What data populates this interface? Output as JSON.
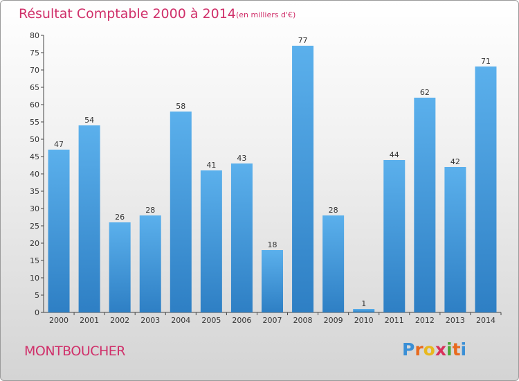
{
  "chart_data": {
    "type": "bar",
    "title": "Résultat Comptable 2000 à 2014",
    "subtitle": "(en milliers d'€)",
    "categories": [
      "2000",
      "2001",
      "2002",
      "2003",
      "2004",
      "2005",
      "2006",
      "2007",
      "2008",
      "2009",
      "2010",
      "2011",
      "2012",
      "2013",
      "2014"
    ],
    "values": [
      47,
      54,
      26,
      28,
      58,
      41,
      43,
      18,
      77,
      28,
      1,
      44,
      62,
      42,
      71
    ],
    "ylim": [
      0,
      80
    ],
    "ytick_step": 5,
    "xlabel": "",
    "ylabel": "",
    "grid": false,
    "bar_color": "#4a9de0"
  },
  "footer": {
    "place": "MONTBOUCHER",
    "logo_letters": [
      "P",
      "r",
      "o",
      "x",
      "i",
      "t",
      "i"
    ],
    "logo_colors": [
      "#3a8fd6",
      "#e86a1e",
      "#e8b81e",
      "#d8305a",
      "#4aa83a",
      "#e86a1e",
      "#3a8fd6"
    ]
  }
}
